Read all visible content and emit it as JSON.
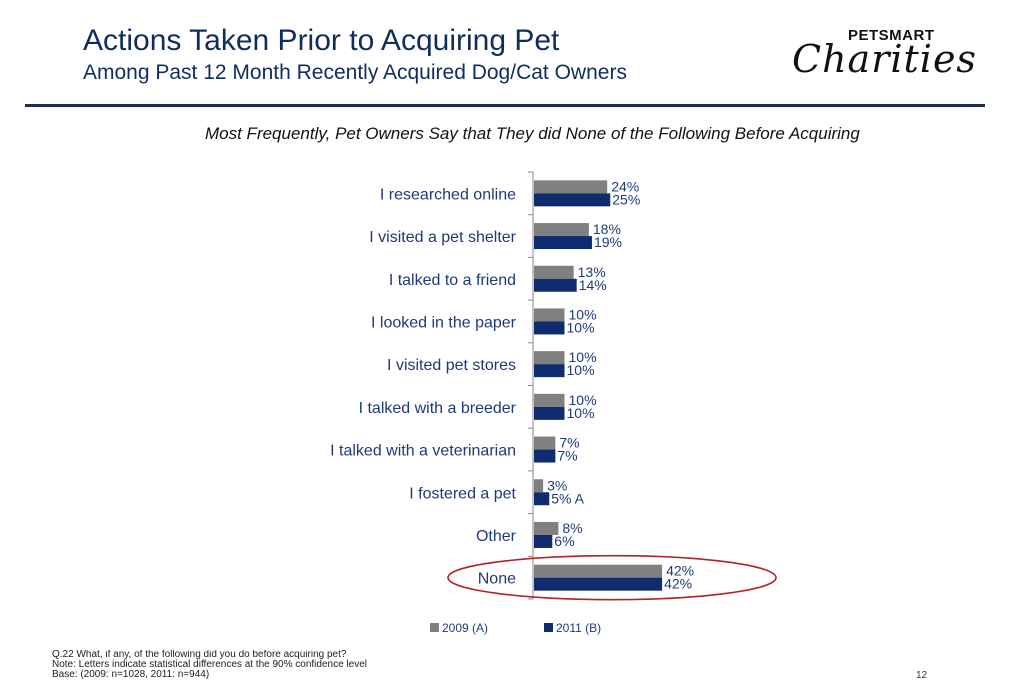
{
  "header": {
    "title": "Actions Taken Prior to Acquiring Pet",
    "subtitle": "Among Past 12 Month Recently Acquired Dog/Cat Owners"
  },
  "logo": {
    "brand": "PETSMART",
    "script": "Charities"
  },
  "headline": "Most Frequently, Pet Owners Say that They did None of the Following Before Acquiring",
  "chart_data": {
    "type": "bar",
    "orientation": "horizontal",
    "categories": [
      "I researched online",
      "I visited a pet shelter",
      "I talked to a friend",
      "I looked in the paper",
      "I visited pet stores",
      "I talked with a breeder",
      "I talked with a veterinarian",
      "I fostered a pet",
      "Other",
      "None"
    ],
    "series": [
      {
        "name": "2009 (A)",
        "values": [
          24,
          18,
          13,
          10,
          10,
          10,
          7,
          3,
          8,
          42
        ],
        "labels": [
          "24%",
          "18%",
          "13%",
          "10%",
          "10%",
          "10%",
          "7%",
          "3%",
          "8%",
          "42%"
        ],
        "color": "#808080"
      },
      {
        "name": "2011 (B)",
        "values": [
          25,
          19,
          14,
          10,
          10,
          10,
          7,
          5,
          6,
          42
        ],
        "labels": [
          "25%",
          "19%",
          "14%",
          "10%",
          "10%",
          "10%",
          "7%",
          "5% A",
          "6%",
          "42%"
        ],
        "color": "#0f2d6e"
      }
    ],
    "unit": "%",
    "xlim": [
      0,
      100
    ],
    "legend_position": "bottom",
    "highlighted_category": "None",
    "highlight_color": "#b0242c",
    "label_color": "#1f3a7a"
  },
  "footnotes": [
    "Q.22  What, if any, of the following did you do before acquiring pet?",
    "Note: Letters indicate statistical differences at the 90% confidence level",
    "Base: (2009: n=1028, 2011: n=944)"
  ],
  "page_number": "12"
}
